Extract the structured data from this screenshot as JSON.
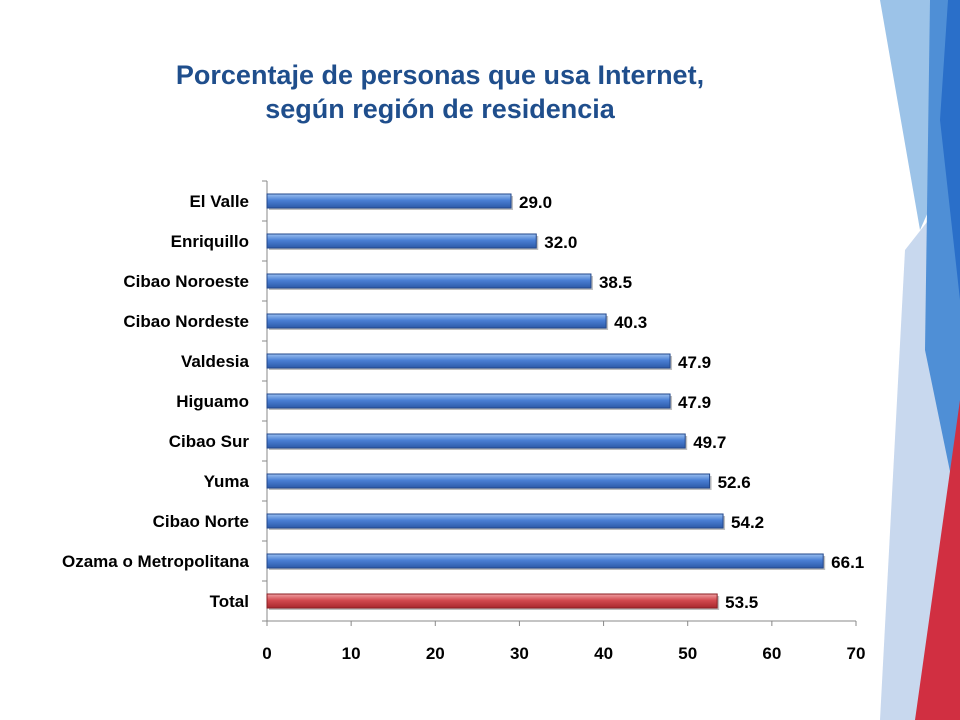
{
  "slide": {
    "title_line1": "Porcentaje de personas que usa Internet,",
    "title_line2": "según región de residencia"
  },
  "chart_data": {
    "type": "bar",
    "orientation": "horizontal",
    "title": "Porcentaje de personas que usa Internet, según región de residencia",
    "xlabel": "",
    "ylabel": "",
    "categories": [
      "El Valle",
      "Enriquillo",
      "Cibao Noroeste",
      "Cibao Nordeste",
      "Valdesia",
      "Higuamo",
      "Cibao Sur",
      "Yuma",
      "Cibao Norte",
      "Ozama o Metropolitana",
      "Total"
    ],
    "values": [
      29.0,
      32.0,
      38.5,
      40.3,
      47.9,
      47.9,
      49.7,
      52.6,
      54.2,
      66.1,
      53.5
    ],
    "value_labels": [
      "29.0",
      "32.0",
      "38.5",
      "40.3",
      "47.9",
      "47.9",
      "49.7",
      "52.6",
      "54.2",
      "66.1",
      "53.5"
    ],
    "highlight_category": "Total",
    "xlim": [
      0,
      70
    ],
    "xticks": [
      0,
      10,
      20,
      30,
      40,
      50,
      60,
      70
    ],
    "grid": false,
    "legend": "none",
    "colors": {
      "bar": "#4a7fd4",
      "bar_highlight": "#d24a4f",
      "title": "#1f4e8c"
    }
  },
  "decoration": {
    "colors": [
      "#9cc3e8",
      "#4f8fd6",
      "#2a6fc9",
      "#c8d8ee",
      "#d12f41"
    ]
  }
}
